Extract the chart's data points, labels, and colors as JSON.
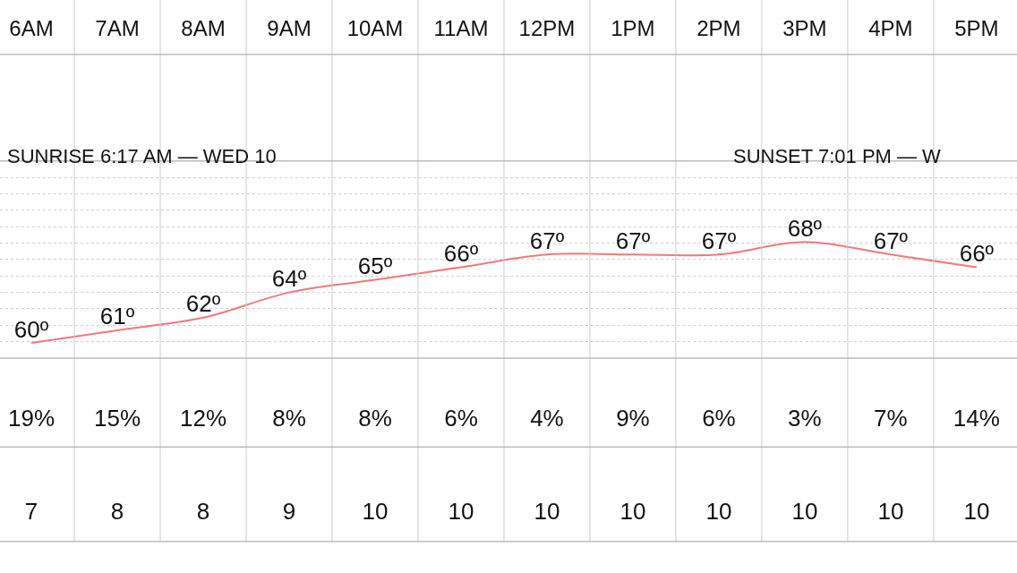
{
  "chart_data": [
    {
      "type": "line",
      "categories": [
        "6AM",
        "7AM",
        "8AM",
        "9AM",
        "10AM",
        "11AM",
        "12PM",
        "1PM",
        "2PM",
        "3PM",
        "4PM",
        "5PM"
      ],
      "series": [
        {
          "color": "#f07a7a",
          "values": [
            60,
            61,
            62,
            64,
            65,
            66,
            67,
            67,
            67,
            68,
            67,
            66
          ],
          "value_labels": [
            "60º",
            "61º",
            "62º",
            "64º",
            "65º",
            "66º",
            "67º",
            "67º",
            "67º",
            "68º",
            "67º",
            "66º"
          ]
        }
      ],
      "annotations": [
        "SUNRISE 6:17 AM — WED 10",
        "SUNSET 7:01 PM — W"
      ],
      "marker": "none",
      "line_style": "solid",
      "grid": "y",
      "legend": false
    },
    {
      "type": "other",
      "values": [
        19,
        15,
        12,
        8,
        8,
        6,
        4,
        9,
        6,
        3,
        7,
        14
      ],
      "value_labels": [
        "19%",
        "15%",
        "12%",
        "8%",
        "8%",
        "6%",
        "4%",
        "9%",
        "6%",
        "3%",
        "7%",
        "14%"
      ]
    },
    {
      "type": "other",
      "values": [
        7,
        8,
        8,
        9,
        10,
        10,
        10,
        10,
        10,
        10,
        10,
        10
      ],
      "data_labels": true
    }
  ]
}
